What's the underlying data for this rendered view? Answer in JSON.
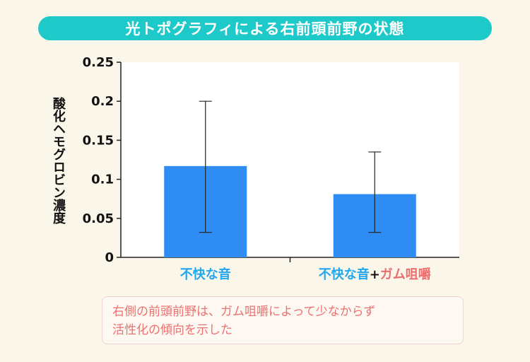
{
  "title": "光トポグラフィによる右前頭前野の状態",
  "colors": {
    "banner": "#1ec9c9",
    "bar": "#2f8cf2",
    "category_blue": "#21a6f0",
    "category_red": "#ec6d6d",
    "note_text": "#ec7171"
  },
  "chart_data": {
    "type": "bar",
    "ylabel": "酸化ヘモグロビン濃度",
    "ylim": [
      0,
      0.25
    ],
    "yticks": [
      "0",
      "0.05",
      "0.1",
      "0.15",
      "0.2",
      "0.25"
    ],
    "categories": [
      {
        "parts": [
          {
            "text": "不快な音",
            "color": "blue"
          }
        ]
      },
      {
        "parts": [
          {
            "text": "不快な音",
            "color": "blue"
          },
          {
            "text": "+",
            "color": "black"
          },
          {
            "text": "ガム咀嚼",
            "color": "red"
          }
        ]
      }
    ],
    "values": [
      0.117,
      0.081
    ],
    "error_low": [
      0.032,
      0.032
    ],
    "error_high": [
      0.2,
      0.135
    ],
    "grid": false
  },
  "note": {
    "lines": [
      "右側の前頭前野は、ガム咀嚼によって少なからず",
      "活性化の傾向を示した"
    ]
  }
}
